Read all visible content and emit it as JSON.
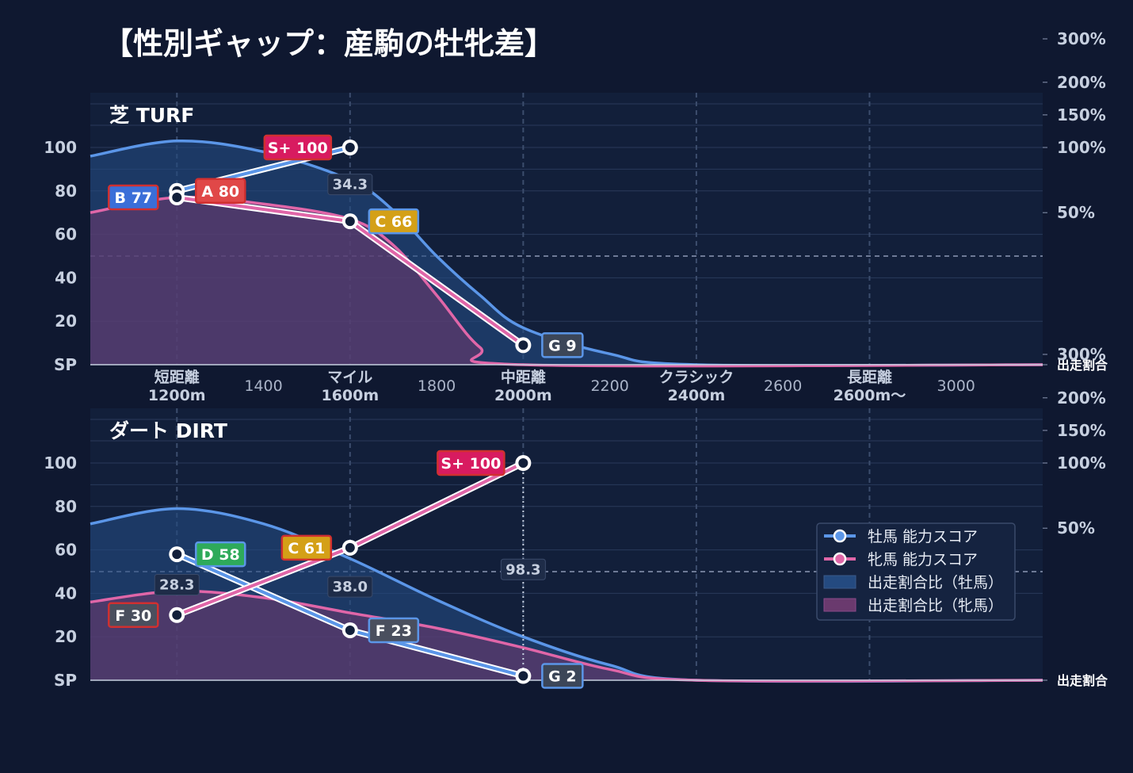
{
  "title": "【性別ギャップ：産駒の牡牝差】",
  "colors": {
    "male": "#5b96e8",
    "female": "#e066a8",
    "male_fill": "#244a80",
    "female_fill": "#6a3a6e",
    "rank_S+": "#d81b60",
    "rank_A": "#e04848",
    "rank_B": "#3a6ed8",
    "rank_C": "#d4a017",
    "rank_D": "#2eaa5a",
    "rank_F": "#4a4f5e",
    "rank_G": "#3c4658"
  },
  "legend": {
    "items": [
      {
        "label": "牡馬 能力スコア",
        "type": "line",
        "series": "male"
      },
      {
        "label": "牝馬 能力スコア",
        "type": "line",
        "series": "female"
      },
      {
        "label": "出走割合比（牡馬）",
        "type": "area",
        "series": "male"
      },
      {
        "label": "出走割合比（牝馬）",
        "type": "area",
        "series": "female"
      }
    ],
    "placement": "right, lower panel"
  },
  "chart_data": [
    {
      "type": "line",
      "panel": "芝 TURF",
      "yticks": [
        "SP",
        "20",
        "40",
        "60",
        "80",
        "100"
      ],
      "ylim": [
        0,
        100
      ],
      "right_ticks": [
        "出走割合",
        "50%",
        "100%",
        "150%",
        "200%",
        "300%"
      ],
      "x_major": [
        {
          "x": 1200,
          "line1": "短距離",
          "line2": "1200m"
        },
        {
          "x": 1600,
          "line1": "マイル",
          "line2": "1600m"
        },
        {
          "x": 2000,
          "line1": "中距離",
          "line2": "2000m"
        },
        {
          "x": 2400,
          "line1": "クラシック",
          "line2": "2400m"
        },
        {
          "x": 2800,
          "line1": "長距離",
          "line2": "2600m〜"
        }
      ],
      "x_minor": [
        {
          "x": 1400,
          "label": "1400"
        },
        {
          "x": 1800,
          "label": "1800"
        },
        {
          "x": 2200,
          "label": "2200"
        },
        {
          "x": 2600,
          "label": "2600"
        },
        {
          "x": 3000,
          "label": "3000"
        }
      ],
      "xlim": [
        1000,
        3200
      ],
      "male_score": [
        {
          "x": 1200,
          "y": 80,
          "rank": "A",
          "label": "A 80"
        },
        {
          "x": 1600,
          "y": 100,
          "rank": "S+",
          "label": "S+ 100"
        }
      ],
      "female_score": [
        {
          "x": 1200,
          "y": 77,
          "rank": "B",
          "label": "B 77"
        },
        {
          "x": 1600,
          "y": 66,
          "rank": "C",
          "label": "C 66"
        },
        {
          "x": 2000,
          "y": 9,
          "rank": "G",
          "label": "G 9"
        }
      ],
      "ratio_labels": [
        {
          "x": 1600,
          "y": 83,
          "label": "34.3"
        }
      ],
      "male_area": [
        [
          1000,
          96
        ],
        [
          1200,
          103
        ],
        [
          1400,
          98
        ],
        [
          1600,
          85
        ],
        [
          1700,
          71
        ],
        [
          1800,
          50
        ],
        [
          1900,
          32
        ],
        [
          2000,
          17
        ],
        [
          2200,
          5
        ],
        [
          2400,
          0
        ],
        [
          3200,
          0
        ]
      ],
      "female_area": [
        [
          1000,
          70
        ],
        [
          1200,
          77
        ],
        [
          1400,
          74
        ],
        [
          1600,
          67
        ],
        [
          1700,
          55
        ],
        [
          1800,
          32
        ],
        [
          1900,
          8
        ],
        [
          2000,
          0
        ],
        [
          3200,
          0
        ]
      ]
    },
    {
      "type": "line",
      "panel": "ダート DIRT",
      "yticks": [
        "SP",
        "20",
        "40",
        "60",
        "80",
        "100"
      ],
      "ylim": [
        0,
        100
      ],
      "right_ticks": [
        "出走割合",
        "50%",
        "100%",
        "150%",
        "200%",
        "300%"
      ],
      "x_major": [],
      "x_minor": [],
      "xlim": [
        1000,
        3200
      ],
      "male_score": [
        {
          "x": 1200,
          "y": 58,
          "rank": "D",
          "label": "D 58"
        },
        {
          "x": 1600,
          "y": 23,
          "rank": "F",
          "label": "F 23"
        },
        {
          "x": 2000,
          "y": 2,
          "rank": "G",
          "label": "G 2"
        }
      ],
      "female_score": [
        {
          "x": 1200,
          "y": 30,
          "rank": "F",
          "label": "F 30"
        },
        {
          "x": 1600,
          "y": 61,
          "rank": "C",
          "label": "C 61"
        },
        {
          "x": 2000,
          "y": 100,
          "rank": "S+",
          "label": "S+ 100"
        }
      ],
      "ratio_labels": [
        {
          "x": 1200,
          "y": 44,
          "label": "28.3"
        },
        {
          "x": 1600,
          "y": 43,
          "label": "38.0"
        },
        {
          "x": 2000,
          "y": 51,
          "label": "98.3"
        }
      ],
      "male_area": [
        [
          1000,
          72
        ],
        [
          1200,
          79
        ],
        [
          1400,
          72
        ],
        [
          1600,
          56
        ],
        [
          1800,
          37
        ],
        [
          2000,
          20
        ],
        [
          2200,
          7
        ],
        [
          2400,
          0
        ],
        [
          3200,
          0
        ]
      ],
      "female_area": [
        [
          1000,
          36
        ],
        [
          1200,
          41
        ],
        [
          1400,
          38
        ],
        [
          1600,
          31
        ],
        [
          1800,
          24
        ],
        [
          2000,
          15
        ],
        [
          2200,
          5
        ],
        [
          2400,
          0
        ],
        [
          3200,
          0
        ]
      ]
    }
  ]
}
